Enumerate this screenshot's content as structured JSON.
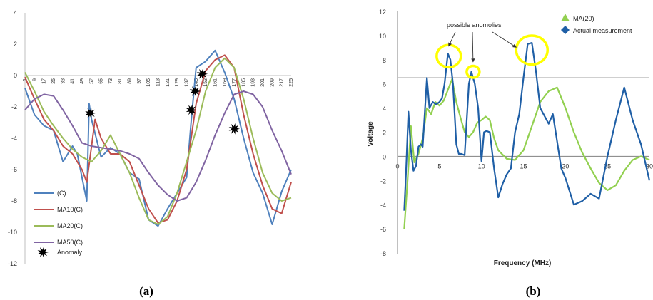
{
  "panels": {
    "a": "(a)",
    "b": "(b)"
  },
  "chart_data": [
    {
      "type": "line",
      "panel": "(a)",
      "x_tick_labels": [
        "1",
        "9",
        "17",
        "25",
        "33",
        "41",
        "49",
        "57",
        "65",
        "73",
        "81",
        "89",
        "97",
        "105",
        "113",
        "121",
        "129",
        "137",
        "145",
        "153",
        "161",
        "169",
        "177",
        "185",
        "193",
        "201",
        "209",
        "217",
        "225"
      ],
      "y_ticks": [
        4,
        2,
        0,
        -2,
        -4,
        -6,
        -8,
        -10,
        -12
      ],
      "xlim": [
        1,
        225
      ],
      "ylim": [
        -12,
        4
      ],
      "x_axis_at_y": 0,
      "grid": false,
      "legend_position": "bottom-left",
      "series": [
        {
          "name": "(C)",
          "color": "#4f81bd",
          "x": [
            1,
            9,
            17,
            25,
            33,
            41,
            45,
            49,
            53,
            55,
            57,
            65,
            73,
            81,
            89,
            97,
            105,
            113,
            121,
            129,
            137,
            141,
            145,
            153,
            161,
            169,
            177,
            185,
            193,
            201,
            209,
            217,
            225
          ],
          "y": [
            -0.8,
            -2.5,
            -3.2,
            -3.5,
            -5.5,
            -4.5,
            -5.0,
            -6.5,
            -8.0,
            -1.8,
            -2.8,
            -5.2,
            -4.6,
            -5.0,
            -6.2,
            -6.6,
            -9.2,
            -9.6,
            -8.5,
            -7.5,
            -6.5,
            -2.8,
            0.5,
            0.9,
            1.6,
            0.2,
            -1.5,
            -4.0,
            -6.2,
            -7.5,
            -9.5,
            -7.4,
            -6.0
          ]
        },
        {
          "name": "MA10(C)",
          "color": "#c0504d",
          "x": [
            1,
            9,
            17,
            25,
            33,
            41,
            49,
            53,
            57,
            60,
            65,
            73,
            81,
            89,
            97,
            105,
            113,
            121,
            129,
            137,
            145,
            153,
            161,
            169,
            177,
            185,
            193,
            201,
            209,
            217,
            225
          ],
          "y": [
            -0.1,
            -1.5,
            -2.8,
            -3.5,
            -4.5,
            -5.0,
            -6.0,
            -6.8,
            -4.5,
            -2.8,
            -4.0,
            -5.0,
            -5.0,
            -5.5,
            -7.0,
            -8.5,
            -9.4,
            -9.2,
            -8.0,
            -6.0,
            -1.8,
            0.3,
            1.0,
            1.3,
            0.5,
            -2.5,
            -5.0,
            -7.0,
            -8.5,
            -8.8,
            -6.8
          ]
        },
        {
          "name": "MA20(C)",
          "color": "#9bbb59",
          "x": [
            1,
            9,
            17,
            25,
            33,
            41,
            49,
            57,
            65,
            73,
            81,
            89,
            97,
            105,
            113,
            121,
            129,
            137,
            145,
            153,
            161,
            169,
            177,
            185,
            193,
            201,
            209,
            217,
            225
          ],
          "y": [
            0.2,
            -1.0,
            -2.3,
            -3.2,
            -4.0,
            -4.7,
            -5.2,
            -5.5,
            -4.8,
            -3.8,
            -5.0,
            -6.2,
            -7.8,
            -9.2,
            -9.5,
            -9.0,
            -7.5,
            -5.5,
            -3.5,
            -1.0,
            0.5,
            1.1,
            0.5,
            -1.5,
            -4.0,
            -6.2,
            -7.5,
            -8.0,
            -7.8
          ]
        },
        {
          "name": "MA50(C)",
          "color": "#8064a2",
          "x": [
            1,
            9,
            17,
            25,
            33,
            41,
            49,
            57,
            65,
            73,
            81,
            89,
            97,
            105,
            113,
            121,
            129,
            137,
            145,
            153,
            161,
            169,
            177,
            185,
            193,
            201,
            209,
            217,
            225
          ],
          "y": [
            -2.2,
            -1.5,
            -1.2,
            -1.3,
            -2.2,
            -3.2,
            -4.3,
            -4.5,
            -4.6,
            -4.7,
            -4.8,
            -5.0,
            -5.3,
            -6.2,
            -7.0,
            -7.6,
            -8.0,
            -7.8,
            -6.8,
            -5.4,
            -3.8,
            -2.4,
            -1.2,
            -1.0,
            -1.2,
            -2.0,
            -3.5,
            -4.8,
            -6.3
          ]
        }
      ],
      "anomaly_label": "Anomaly",
      "anomalies": [
        {
          "x": 56,
          "y": -2.4
        },
        {
          "x": 141,
          "y": -2.2
        },
        {
          "x": 144,
          "y": -1.0
        },
        {
          "x": 150,
          "y": 0.1
        },
        {
          "x": 177,
          "y": -3.4
        }
      ]
    },
    {
      "type": "line",
      "panel": "(b)",
      "xlabel": "Frequency (MHz)",
      "ylabel": "Voltage",
      "x_ticks": [
        0,
        5,
        10,
        15,
        20,
        25,
        30
      ],
      "y_ticks": [
        -8,
        -6,
        -4,
        -2,
        0,
        2,
        4,
        6,
        8,
        10,
        12
      ],
      "xlim": [
        0,
        30
      ],
      "ylim": [
        -8,
        12
      ],
      "grid": false,
      "legend_position": "top-right",
      "threshold": 6.5,
      "annotation": "possible anomolies",
      "highlighted_points": [
        {
          "x": 6.1,
          "y": 8.3
        },
        {
          "x": 9.0,
          "y": 7.0
        },
        {
          "x": 16.0,
          "y": 8.8
        }
      ],
      "series": [
        {
          "name": "MA(20)",
          "color": "#92d050",
          "marker": "triangle",
          "x": [
            0.8,
            1.2,
            1.6,
            2.0,
            2.5,
            3.0,
            3.5,
            4.0,
            4.5,
            5.0,
            5.5,
            6.0,
            6.5,
            7.0,
            7.5,
            8.0,
            8.5,
            9.0,
            9.5,
            10.0,
            10.5,
            11.0,
            11.5,
            12.0,
            13.0,
            14.0,
            15.0,
            16.0,
            17.0,
            18.0,
            19.0,
            20.0,
            21.0,
            22.0,
            23.0,
            24.0,
            25.0,
            26.0,
            27.0,
            28.0,
            29.0,
            30.0
          ],
          "y": [
            -6.0,
            -2.0,
            2.5,
            -0.5,
            0.2,
            1.5,
            4.0,
            3.5,
            4.5,
            4.2,
            4.6,
            5.5,
            6.4,
            4.5,
            3.2,
            2.0,
            1.6,
            2.0,
            2.8,
            3.0,
            3.3,
            3.0,
            1.5,
            0.5,
            -0.2,
            -0.3,
            0.5,
            2.5,
            4.5,
            5.4,
            5.7,
            4.0,
            2.0,
            0.3,
            -1.0,
            -2.2,
            -2.8,
            -2.4,
            -1.2,
            -0.3,
            0.0,
            -0.3
          ]
        },
        {
          "name": "Actual measurement",
          "color": "#1f5fa6",
          "marker": "diamond",
          "x": [
            0.8,
            1.0,
            1.3,
            1.6,
            1.9,
            2.2,
            2.5,
            2.8,
            3.0,
            3.5,
            3.8,
            4.2,
            4.6,
            5.0,
            5.3,
            5.6,
            6.0,
            6.3,
            6.6,
            7.0,
            7.3,
            7.6,
            8.0,
            8.5,
            8.8,
            9.2,
            9.6,
            10.0,
            10.3,
            10.6,
            11.0,
            11.5,
            12.0,
            12.5,
            13.0,
            13.5,
            14.0,
            14.5,
            15.0,
            15.5,
            16.0,
            16.5,
            17.0,
            18.0,
            18.5,
            19.5,
            20.0,
            21.0,
            22.0,
            23.0,
            24.0,
            25.0,
            26.0,
            27.0,
            28.0,
            29.0,
            30.0
          ],
          "y": [
            -4.5,
            -1.5,
            3.7,
            0.5,
            -1.2,
            -0.8,
            0.8,
            1.0,
            0.8,
            6.5,
            4.0,
            4.5,
            4.3,
            4.5,
            4.8,
            6.0,
            8.5,
            8.0,
            6.0,
            1.0,
            0.2,
            0.2,
            0.1,
            6.0,
            7.0,
            6.0,
            4.0,
            -0.4,
            2.0,
            2.1,
            2.0,
            -1.0,
            -3.4,
            -2.3,
            -1.5,
            -1.0,
            2.0,
            3.5,
            6.5,
            9.3,
            9.4,
            7.0,
            4.0,
            2.7,
            3.5,
            -1.0,
            -1.8,
            -4.0,
            -3.7,
            -3.1,
            -3.5,
            0.0,
            3.0,
            5.7,
            3.0,
            1.0,
            -2.0
          ]
        }
      ]
    }
  ]
}
